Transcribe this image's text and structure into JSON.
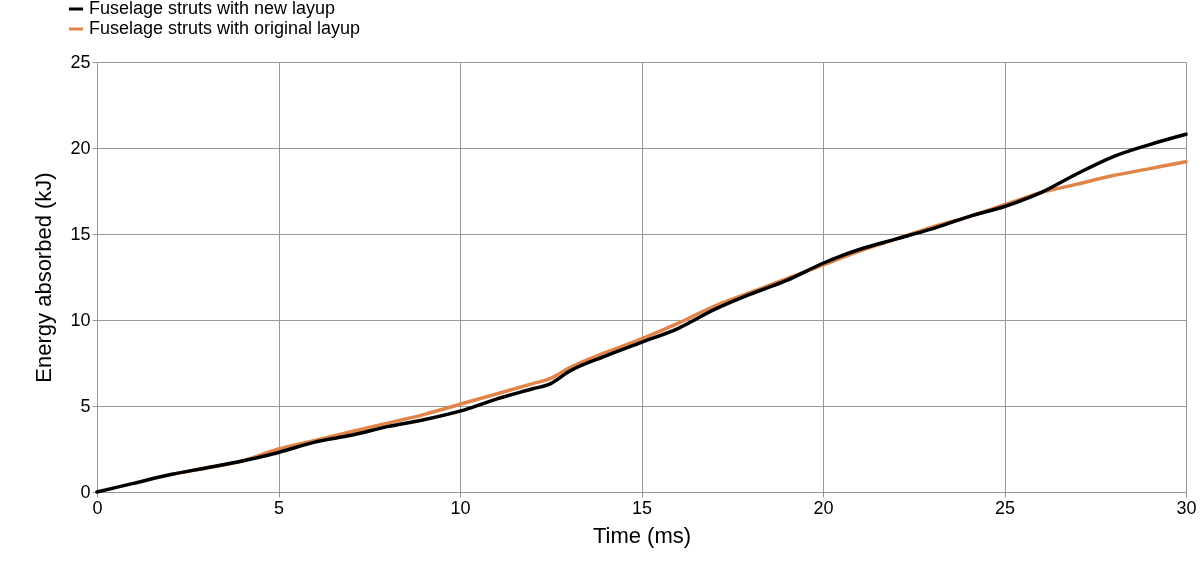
{
  "chart_data": {
    "type": "line",
    "xlabel": "Time (ms)",
    "ylabel": "Energy absorbed (kJ)",
    "x": [
      0,
      1,
      2,
      3,
      4,
      5,
      6,
      7,
      8,
      9,
      10,
      11,
      12,
      12.5,
      13,
      14,
      15,
      16,
      17,
      18,
      19,
      20,
      21,
      22,
      23,
      24,
      25,
      26,
      27,
      28,
      29,
      30
    ],
    "series": [
      {
        "name": "Fuselage struts with new layup",
        "color": "#000000",
        "values": [
          0,
          0.5,
          1.0,
          1.4,
          1.8,
          2.3,
          2.9,
          3.3,
          3.8,
          4.2,
          4.7,
          5.4,
          6.0,
          6.3,
          7.0,
          7.9,
          8.7,
          9.5,
          10.6,
          11.5,
          12.3,
          13.3,
          14.1,
          14.7,
          15.3,
          16.0,
          16.6,
          17.4,
          18.5,
          19.5,
          20.2,
          20.8
        ]
      },
      {
        "name": "Fuselage struts with original layup",
        "color": "#e0844a",
        "values": [
          null,
          null,
          1.0,
          1.4,
          1.8,
          2.5,
          3.0,
          3.5,
          4.0,
          4.5,
          5.1,
          5.7,
          6.3,
          6.6,
          7.2,
          8.1,
          8.9,
          9.8,
          10.8,
          11.6,
          12.4,
          13.2,
          14.0,
          14.7,
          15.4,
          16.0,
          16.7,
          17.4,
          17.9,
          18.4,
          18.8,
          19.2
        ]
      }
    ],
    "xlim": [
      0,
      30
    ],
    "xticks": [
      0,
      5,
      10,
      15,
      20,
      25,
      30
    ],
    "ylim": [
      0,
      25
    ],
    "yticks": [
      0,
      5,
      10,
      15,
      20,
      25
    ],
    "grid": true,
    "legend": "top left",
    "marker": "none",
    "line_style": "solid"
  }
}
